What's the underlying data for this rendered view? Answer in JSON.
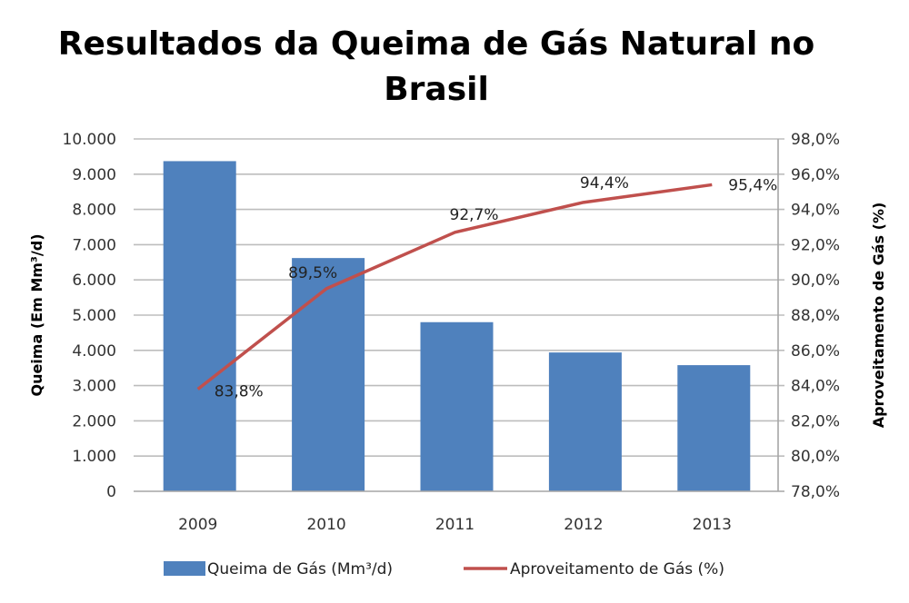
{
  "chart_data": {
    "type": "bar",
    "title": [
      "Resultados da Queima de Gás Natural no",
      "Brasil"
    ],
    "categories": [
      "2009",
      "2010",
      "2011",
      "2012",
      "2013"
    ],
    "series": [
      {
        "name": "Queima de Gás (Mm³/d)",
        "type": "bar",
        "axis": "left",
        "color": "#4F81BD",
        "values": [
          9370,
          6620,
          4800,
          3940,
          3580
        ]
      },
      {
        "name": "Aproveitamento de Gás (%)",
        "type": "line",
        "axis": "right",
        "color": "#C0504D",
        "values": [
          83.8,
          89.5,
          92.7,
          94.4,
          95.4
        ],
        "data_labels": [
          "83,8%",
          "89,5%",
          "92,7%",
          "94,4%",
          "95,4%"
        ]
      }
    ],
    "ylabel": "Queima (Em Mm³/d)",
    "ylabel_right": "Aproveitamento de Gás (%)",
    "ylim": [
      0,
      10000
    ],
    "ylim_right": [
      78,
      98
    ],
    "yticks": [
      "0",
      "1.000",
      "2.000",
      "3.000",
      "4.000",
      "5.000",
      "6.000",
      "7.000",
      "8.000",
      "9.000",
      "10.000"
    ],
    "yticks_right": [
      "78,0%",
      "80,0%",
      "82,0%",
      "84,0%",
      "86,0%",
      "88,0%",
      "90,0%",
      "92,0%",
      "94,0%",
      "96,0%",
      "98,0%"
    ],
    "grid": true,
    "legend_position": "bottom"
  }
}
